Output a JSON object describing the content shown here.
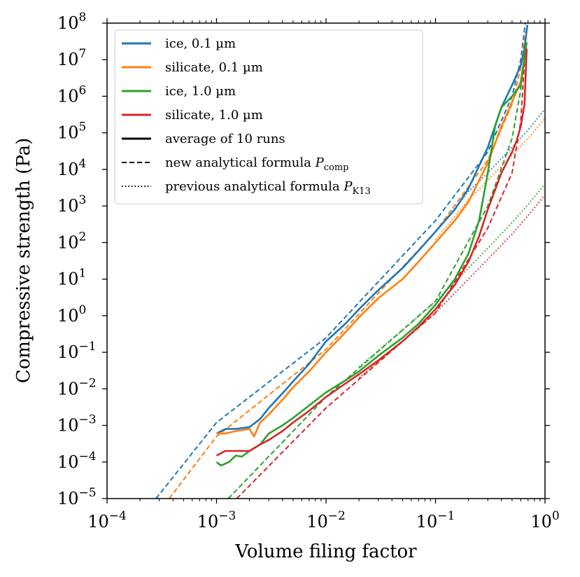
{
  "chart_data": {
    "type": "line",
    "xscale": "log",
    "yscale": "log",
    "xlim": [
      0.0001,
      1
    ],
    "ylim": [
      1e-05,
      100000000.0
    ],
    "xlabel": "Volume filing factor",
    "ylabel": "Compressive strength (Pa)",
    "title": "",
    "x_ticks": [
      {
        "base": "10",
        "exp": "−4",
        "value": 0.0001
      },
      {
        "base": "10",
        "exp": "−3",
        "value": 0.001
      },
      {
        "base": "10",
        "exp": "−2",
        "value": 0.01
      },
      {
        "base": "10",
        "exp": "−1",
        "value": 0.1
      },
      {
        "base": "10",
        "exp": "0",
        "value": 1
      }
    ],
    "y_ticks": [
      {
        "base": "10",
        "exp": "8",
        "value": 100000000.0
      },
      {
        "base": "10",
        "exp": "7",
        "value": 10000000.0
      },
      {
        "base": "10",
        "exp": "6",
        "value": 1000000.0
      },
      {
        "base": "10",
        "exp": "5",
        "value": 100000.0
      },
      {
        "base": "10",
        "exp": "4",
        "value": 10000.0
      },
      {
        "base": "10",
        "exp": "3",
        "value": 1000.0
      },
      {
        "base": "10",
        "exp": "2",
        "value": 100.0
      },
      {
        "base": "10",
        "exp": "1",
        "value": 10.0
      },
      {
        "base": "10",
        "exp": "0",
        "value": 1.0
      },
      {
        "base": "10",
        "exp": "−1",
        "value": 0.1
      },
      {
        "base": "10",
        "exp": "−2",
        "value": 0.01
      },
      {
        "base": "10",
        "exp": "−3",
        "value": 0.001
      },
      {
        "base": "10",
        "exp": "−4",
        "value": 0.0001
      },
      {
        "base": "10",
        "exp": "−5",
        "value": 1e-05
      }
    ],
    "legend": {
      "placement": "upper-left",
      "items": [
        {
          "label": "ice, 0.1 µm",
          "color": "#1f77b4",
          "style": "solid"
        },
        {
          "label": "silicate, 0.1 µm",
          "color": "#ff7f0e",
          "style": "solid"
        },
        {
          "label": "ice, 1.0 µm",
          "color": "#2ca02c",
          "style": "solid"
        },
        {
          "label": "silicate, 1.0 µm",
          "color": "#d62728",
          "style": "solid"
        },
        {
          "label": "average of 10 runs",
          "color": "#000000",
          "style": "solid"
        },
        {
          "label": "new analytical formula ",
          "label_math": "P",
          "label_sub": "comp",
          "color": "#000000",
          "style": "dashed"
        },
        {
          "label": "previous analytical formula ",
          "label_math": "P",
          "label_sub": "K13",
          "color": "#000000",
          "style": "dotted"
        }
      ]
    },
    "series": [
      {
        "name": "ice, 0.1 µm (average of 10 runs)",
        "color": "#1f77b4",
        "style": "solid",
        "x": [
          0.001,
          0.0012,
          0.0015,
          0.002,
          0.0025,
          0.003,
          0.004,
          0.005,
          0.007,
          0.01,
          0.015,
          0.02,
          0.03,
          0.05,
          0.07,
          0.1,
          0.15,
          0.2,
          0.3,
          0.4,
          0.5,
          0.6,
          0.65,
          0.69
        ],
        "y": [
          0.0006,
          0.0008,
          0.0008,
          0.0009,
          0.0015,
          0.003,
          0.0075,
          0.016,
          0.048,
          0.2,
          0.6,
          1.5,
          5,
          20,
          60,
          200,
          800,
          3000,
          40000,
          500000,
          2000000,
          7000000,
          20000000,
          90000000
        ]
      },
      {
        "name": "silicate, 0.1 µm (average of 10 runs)",
        "color": "#ff7f0e",
        "style": "solid",
        "x": [
          0.001,
          0.0012,
          0.0015,
          0.002,
          0.0022,
          0.0025,
          0.003,
          0.004,
          0.005,
          0.007,
          0.01,
          0.015,
          0.02,
          0.03,
          0.05,
          0.07,
          0.1,
          0.15,
          0.2,
          0.3,
          0.4,
          0.5,
          0.6,
          0.68
        ],
        "y": [
          0.0006,
          0.0006,
          0.0007,
          0.0008,
          0.0005,
          0.0012,
          0.002,
          0.005,
          0.011,
          0.03,
          0.1,
          0.35,
          0.9,
          3,
          10,
          30,
          100,
          400,
          1300,
          15000,
          150000,
          700000,
          2500000,
          30000000
        ]
      },
      {
        "name": "ice, 1.0 µm (average of 10 runs)",
        "color": "#2ca02c",
        "style": "solid",
        "x": [
          0.001,
          0.0011,
          0.0013,
          0.0015,
          0.0017,
          0.002,
          0.0025,
          0.003,
          0.004,
          0.005,
          0.007,
          0.01,
          0.015,
          0.02,
          0.03,
          0.05,
          0.07,
          0.1,
          0.15,
          0.2,
          0.25,
          0.3,
          0.35,
          0.4,
          0.5,
          0.6,
          0.68
        ],
        "y": [
          0.0001,
          8e-05,
          0.0001,
          0.00015,
          0.00014,
          0.0002,
          0.0003,
          0.0006,
          0.001,
          0.0016,
          0.0035,
          0.008,
          0.017,
          0.03,
          0.08,
          0.25,
          0.6,
          2,
          10,
          50,
          400,
          8000,
          150000,
          500000,
          1000000,
          2000000,
          30000000
        ]
      },
      {
        "name": "silicate, 1.0 µm (average of 10 runs)",
        "color": "#d62728",
        "style": "solid",
        "x": [
          0.001,
          0.0012,
          0.0015,
          0.002,
          0.0025,
          0.003,
          0.004,
          0.005,
          0.007,
          0.01,
          0.015,
          0.02,
          0.03,
          0.05,
          0.07,
          0.1,
          0.15,
          0.2,
          0.25,
          0.3,
          0.4,
          0.5,
          0.55,
          0.6,
          0.65,
          0.68
        ],
        "y": [
          0.00015,
          0.0002,
          0.0002,
          0.0002,
          0.0003,
          0.0004,
          0.0007,
          0.0012,
          0.0025,
          0.006,
          0.014,
          0.025,
          0.06,
          0.2,
          0.5,
          1.5,
          7,
          30,
          150,
          800,
          8000,
          30000,
          60000,
          150000,
          600000,
          20000000
        ]
      },
      {
        "name": "ice, 0.1 µm (new analytical formula P_comp)",
        "color": "#1f77b4",
        "style": "dashed",
        "x": [
          0.00028,
          0.001,
          0.01,
          0.1,
          0.3,
          0.5,
          0.6,
          0.66
        ],
        "y": [
          1e-05,
          0.0012,
          0.25,
          400,
          30000,
          1000000,
          10000000,
          100000000
        ]
      },
      {
        "name": "silicate, 0.1 µm (new analytical formula P_comp)",
        "color": "#ff7f0e",
        "style": "dashed",
        "x": [
          0.00037,
          0.001,
          0.01,
          0.1,
          0.3,
          0.5,
          0.6,
          0.66
        ],
        "y": [
          1e-05,
          0.0005,
          0.12,
          200,
          18000,
          600000,
          6000000,
          60000000
        ]
      },
      {
        "name": "ice, 1.0 µm (new analytical formula P_comp)",
        "color": "#2ca02c",
        "style": "dashed",
        "x": [
          0.00128,
          0.01,
          0.1,
          0.3,
          0.5,
          0.6,
          0.66
        ],
        "y": [
          1e-05,
          0.006,
          2.5,
          1000,
          70000,
          1500000,
          30000000
        ]
      },
      {
        "name": "silicate, 1.0 µm (new analytical formula P_comp)",
        "color": "#d62728",
        "style": "dashed",
        "x": [
          0.00153,
          0.01,
          0.1,
          0.3,
          0.5,
          0.6,
          0.66
        ],
        "y": [
          1e-05,
          0.003,
          1.2,
          250,
          8000,
          200000,
          20000000
        ]
      },
      {
        "name": "ice, 0.1 µm (previous analytical formula P_K13)",
        "color": "#1f77b4",
        "style": "dotted",
        "x": [
          0.1,
          0.2,
          0.3,
          0.5,
          0.7,
          1.0
        ],
        "y": [
          200,
          2500,
          8000,
          40000,
          120000,
          450000
        ]
      },
      {
        "name": "silicate, 0.1 µm (previous analytical formula P_K13)",
        "color": "#ff7f0e",
        "style": "dotted",
        "x": [
          0.1,
          0.2,
          0.3,
          0.5,
          0.7,
          1.0
        ],
        "y": [
          120,
          1500,
          5000,
          25000,
          70000,
          250000
        ]
      },
      {
        "name": "ice, 1.0 µm (previous analytical formula P_K13)",
        "color": "#2ca02c",
        "style": "dotted",
        "x": [
          0.02,
          0.05,
          0.1,
          0.2,
          0.3,
          0.5,
          0.7,
          1.0
        ],
        "y": [
          0.04,
          0.4,
          2.5,
          20,
          70,
          350,
          1100,
          4000
        ]
      },
      {
        "name": "silicate, 1.0 µm (previous analytical formula P_K13)",
        "color": "#d62728",
        "style": "dotted",
        "x": [
          0.02,
          0.05,
          0.1,
          0.2,
          0.3,
          0.5,
          0.7,
          1.0
        ],
        "y": [
          0.02,
          0.2,
          1.2,
          10,
          35,
          170,
          550,
          2000
        ]
      }
    ]
  }
}
